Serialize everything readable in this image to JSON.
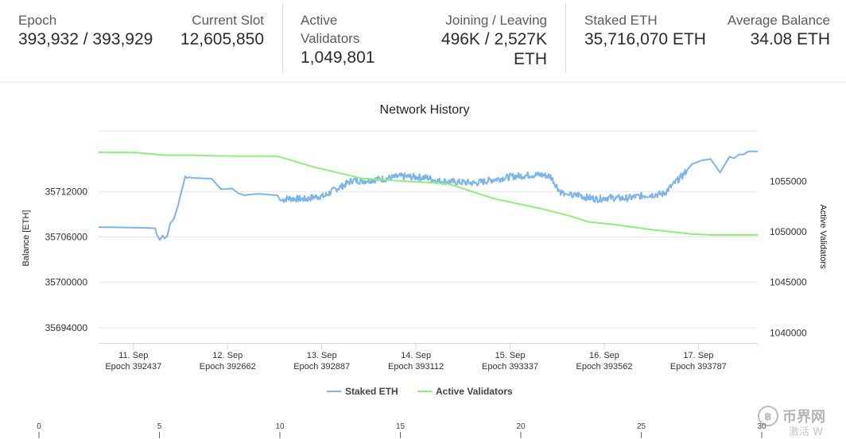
{
  "stats": {
    "epoch": {
      "label": "Epoch",
      "value": "393,932 / 393,929"
    },
    "current_slot": {
      "label": "Current Slot",
      "value": "12,605,850"
    },
    "active_validators": {
      "label_line1": "Active",
      "label_line2": "Validators",
      "value": "1,049,801"
    },
    "joining_leaving": {
      "label": "Joining / Leaving",
      "value_line1": "496K / 2,527K",
      "value_line2": "ETH"
    },
    "staked_eth": {
      "label": "Staked ETH",
      "value": "35,716,070 ETH"
    },
    "average_balance": {
      "label": "Average Balance",
      "value": "34.08 ETH"
    }
  },
  "chart_data": {
    "type": "line",
    "title": "Network History",
    "ylabel": "Balance [ETH]",
    "y2label": "Active Validators",
    "ylim": [
      35692000,
      35720000
    ],
    "y2lim": [
      1039000,
      1060000
    ],
    "yticks": [
      35694000,
      35700000,
      35706000,
      35712000
    ],
    "y2ticks": [
      1040000,
      1045000,
      1050000,
      1055000
    ],
    "xlim": [
      0,
      7
    ],
    "x_ticks": [
      {
        "x": 0.37,
        "label": "11. Sep",
        "sub": "Epoch 392437"
      },
      {
        "x": 1.37,
        "label": "12. Sep",
        "sub": "Epoch 392662"
      },
      {
        "x": 2.37,
        "label": "13. Sep",
        "sub": "Epoch 392887"
      },
      {
        "x": 3.37,
        "label": "14. Sep",
        "sub": "Epoch 393112"
      },
      {
        "x": 4.37,
        "label": "15. Sep",
        "sub": "Epoch 393337"
      },
      {
        "x": 5.37,
        "label": "16. Sep",
        "sub": "Epoch 393562"
      },
      {
        "x": 6.37,
        "label": "17. Sep",
        "sub": "Epoch 393787"
      }
    ],
    "legend_position": "bottom-center",
    "series": [
      {
        "name": "Staked ETH",
        "axis": "left",
        "color": "#7cb5ec",
        "x": [
          0,
          0.3,
          0.5,
          0.6,
          0.62,
          0.65,
          0.68,
          0.7,
          0.73,
          0.76,
          0.8,
          0.84,
          0.88,
          0.92,
          0.94,
          0.96,
          1.0,
          1.2,
          1.3,
          1.42,
          1.48,
          1.55,
          1.6,
          1.7,
          1.9,
          1.93,
          2.0,
          2.2,
          2.3,
          2.4,
          2.5,
          2.6,
          2.7,
          2.8,
          2.95,
          3.05,
          3.2,
          3.4,
          3.5,
          3.6,
          3.75,
          3.9,
          4.0,
          4.2,
          4.3,
          4.4,
          4.5,
          4.6,
          4.7,
          4.8,
          4.9,
          5.0,
          5.05,
          5.1,
          5.15,
          5.2,
          5.3,
          5.4,
          5.6,
          5.8,
          6.0,
          6.2,
          6.3,
          6.4,
          6.5,
          6.55,
          6.6,
          6.7,
          6.75,
          6.8,
          6.85,
          6.9,
          7.0
        ],
        "values": [
          35707300,
          35707250,
          35707200,
          35707150,
          35706300,
          35705600,
          35706200,
          35705800,
          35706100,
          35707800,
          35708400,
          35710000,
          35712000,
          35714000,
          35713800,
          35713900,
          35713800,
          35713700,
          35712300,
          35712400,
          35711800,
          35711500,
          35711600,
          35711700,
          35711500,
          35710800,
          35711100,
          35711000,
          35711300,
          35711400,
          35712200,
          35712800,
          35713500,
          35713400,
          35713600,
          35713700,
          35714000,
          35713900,
          35713800,
          35713400,
          35713300,
          35713200,
          35713100,
          35713600,
          35713800,
          35714000,
          35714100,
          35714200,
          35714200,
          35714000,
          35712000,
          35711500,
          35711400,
          35711600,
          35711300,
          35711200,
          35711000,
          35711200,
          35711100,
          35711500,
          35711700,
          35714100,
          35715600,
          35716100,
          35716300,
          35715400,
          35714500,
          35716600,
          35716400,
          35716900,
          35716900,
          35717300,
          35717300
        ]
      },
      {
        "name": "Active Validators",
        "axis": "right",
        "color": "#90ed7d",
        "x": [
          0,
          0.4,
          0.7,
          1.0,
          1.2,
          1.5,
          1.9,
          2.3,
          2.8,
          3.3,
          3.7,
          4.2,
          4.7,
          5.0,
          5.2,
          5.5,
          5.9,
          6.3,
          6.5,
          7.0
        ],
        "values": [
          1057900,
          1057850,
          1057600,
          1057600,
          1057550,
          1057500,
          1057500,
          1056400,
          1055300,
          1055000,
          1054800,
          1053300,
          1052300,
          1051600,
          1051000,
          1050700,
          1050200,
          1049800,
          1049700,
          1049700
        ]
      }
    ]
  },
  "bottom_scale": {
    "ticks": [
      "0",
      "5",
      "10",
      "15",
      "20",
      "25",
      "30"
    ]
  },
  "watermark": {
    "text": "币界网",
    "subtext": "激活 W"
  }
}
